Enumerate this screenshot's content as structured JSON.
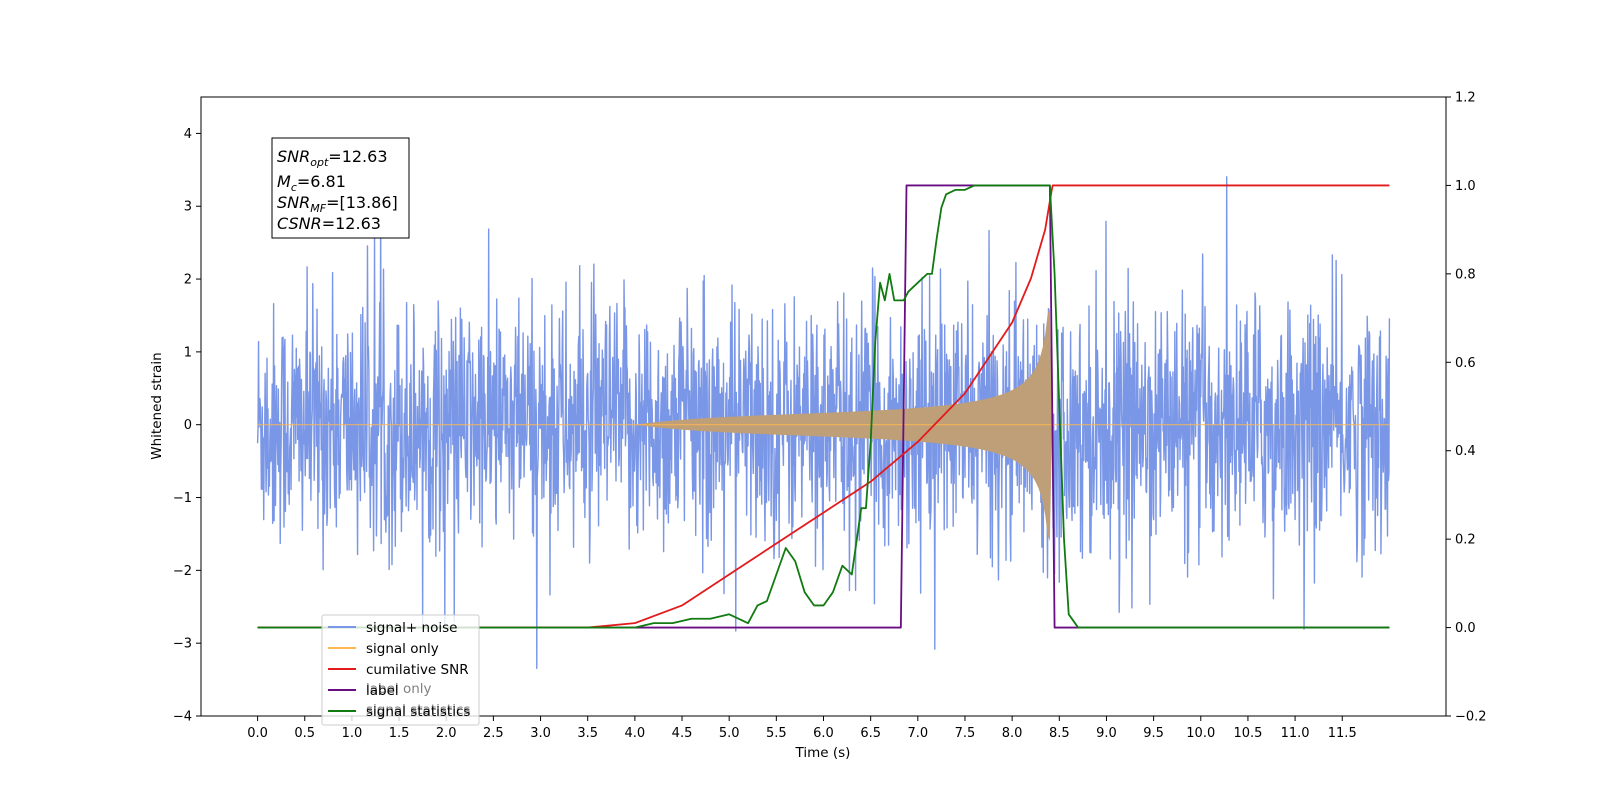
{
  "chart_data": {
    "type": "line",
    "xlabel": "Time (s)",
    "ylabel": "Whitened strain",
    "xlim": [
      -0.6,
      12.6
    ],
    "ylim_left": [
      -4,
      4.5
    ],
    "ylim_right": [
      -0.2,
      1.2
    ],
    "x_ticks": [
      "0.0",
      "0.5",
      "1.0",
      "1.5",
      "2.0",
      "2.5",
      "3.0",
      "3.5",
      "4.0",
      "4.5",
      "5.0",
      "5.5",
      "6.0",
      "6.5",
      "7.0",
      "7.5",
      "8.0",
      "8.5",
      "9.0",
      "9.5",
      "10.0",
      "10.5",
      "11.0",
      "11.5"
    ],
    "y_ticks_left": [
      "4",
      "3",
      "2",
      "1",
      "0",
      "−1",
      "−2",
      "−3",
      "−4"
    ],
    "y_ticks_right": [
      "1.2",
      "1.0",
      "0.8",
      "0.6",
      "0.4",
      "0.2",
      "0.0",
      "−0.2"
    ],
    "colors": {
      "noise": "#7a96e6",
      "signal": "#ffb84d",
      "signal_fill": "#bf9f78",
      "snr": "#e31a1c",
      "label": "#6a0d83",
      "stats": "#117a11"
    },
    "annotation": {
      "snr_opt": "=12.63",
      "mc": "=6.81",
      "snr_mf": "=[13.86]",
      "csnr": "=12.63"
    },
    "legend": [
      {
        "name": "signal+ noise",
        "color": "#7a96e6"
      },
      {
        "name": "signal only",
        "color": "#ffb84d"
      },
      {
        "name": "cumilative SNR",
        "color": "#e31a1c"
      },
      {
        "name": "label",
        "color": "#6a0d83"
      },
      {
        "name": "signal statistics",
        "color": "#117a11"
      }
    ],
    "legend_hidden_text": [
      "label only",
      "signal statistics"
    ],
    "series": [
      {
        "name": "signal+ noise",
        "axis": "left",
        "description": "noisy whitened strain, approximately within ±2.5 with spikes to ±4",
        "x_range": [
          0,
          12
        ]
      },
      {
        "name": "signal only",
        "axis": "left",
        "chirp_start": 4.0,
        "merger_time": 8.4,
        "peak_amplitude": 1.6
      },
      {
        "name": "cumilative SNR",
        "axis": "right",
        "x": [
          0,
          3.5,
          4.0,
          4.5,
          5.0,
          5.5,
          6.0,
          6.5,
          7.0,
          7.5,
          8.0,
          8.2,
          8.35,
          8.42,
          8.43,
          12.0
        ],
        "y": [
          0,
          0.0,
          0.01,
          0.05,
          0.12,
          0.19,
          0.26,
          0.33,
          0.42,
          0.53,
          0.69,
          0.79,
          0.9,
          0.99,
          1.0,
          1.0
        ]
      },
      {
        "name": "label",
        "axis": "right",
        "x": [
          0,
          6.82,
          6.88,
          8.4,
          8.45,
          12.0
        ],
        "y": [
          0,
          0,
          1,
          1,
          0,
          0
        ]
      },
      {
        "name": "signal statistics",
        "axis": "right",
        "x": [
          0,
          3.0,
          4.0,
          4.2,
          4.4,
          4.6,
          4.8,
          5.0,
          5.2,
          5.3,
          5.4,
          5.5,
          5.6,
          5.7,
          5.8,
          5.9,
          6.0,
          6.1,
          6.2,
          6.3,
          6.4,
          6.45,
          6.5,
          6.55,
          6.6,
          6.65,
          6.7,
          6.75,
          6.8,
          6.85,
          6.9,
          7.0,
          7.1,
          7.15,
          7.2,
          7.25,
          7.3,
          7.4,
          7.5,
          7.6,
          7.7,
          7.8,
          8.4,
          8.45,
          8.5,
          8.55,
          8.6,
          8.7,
          12.0
        ],
        "y": [
          0,
          0,
          0.0,
          0.01,
          0.01,
          0.02,
          0.02,
          0.03,
          0.01,
          0.05,
          0.06,
          0.12,
          0.18,
          0.15,
          0.08,
          0.05,
          0.05,
          0.08,
          0.14,
          0.12,
          0.27,
          0.27,
          0.42,
          0.65,
          0.78,
          0.74,
          0.8,
          0.74,
          0.74,
          0.74,
          0.76,
          0.78,
          0.8,
          0.8,
          0.88,
          0.95,
          0.98,
          0.99,
          0.99,
          1.0,
          1.0,
          1.0,
          1.0,
          0.8,
          0.5,
          0.2,
          0.03,
          0.0,
          0.0
        ]
      }
    ]
  }
}
